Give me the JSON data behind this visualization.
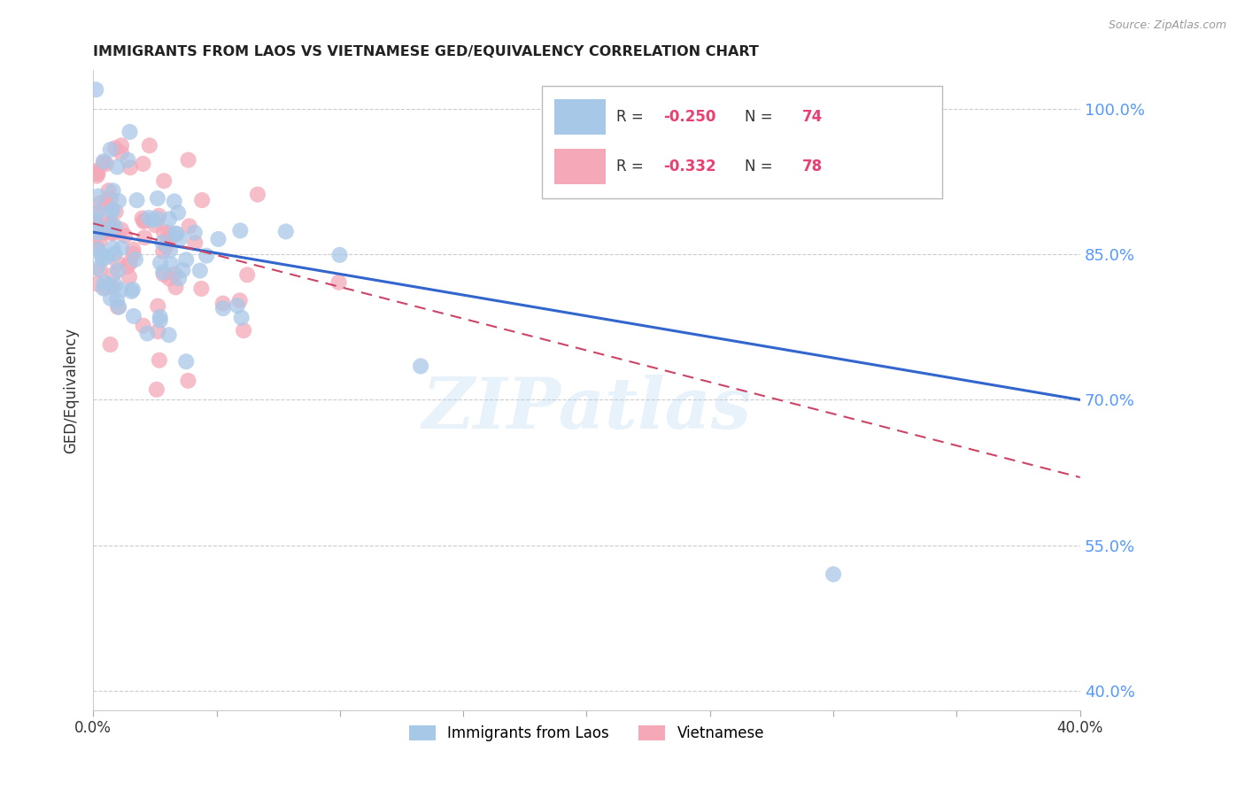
{
  "title": "IMMIGRANTS FROM LAOS VS VIETNAMESE GED/EQUIVALENCY CORRELATION CHART",
  "source": "Source: ZipAtlas.com",
  "ylabel": "GED/Equivalency",
  "series1_label": "Immigrants from Laos",
  "series2_label": "Vietnamese",
  "R1": -0.25,
  "N1": 74,
  "R2": -0.332,
  "N2": 78,
  "color1": "#a8c8e8",
  "color2": "#f4a8b8",
  "line_color1": "#3366cc",
  "line_color2": "#cc4466",
  "xlim": [
    0.0,
    0.4
  ],
  "ylim": [
    0.38,
    1.04
  ],
  "yticks": [
    0.4,
    0.55,
    0.7,
    0.85,
    1.0
  ],
  "ytick_labels": [
    "40.0%",
    "55.0%",
    "70.0%",
    "85.0%",
    "100.0%"
  ],
  "xticks": [
    0.0,
    0.05,
    0.1,
    0.15,
    0.2,
    0.25,
    0.3,
    0.35,
    0.4
  ],
  "xtick_labels": [
    "0.0%",
    "",
    "",
    "",
    "",
    "",
    "",
    "",
    "40.0%"
  ],
  "watermark": "ZIPatlas",
  "background_color": "#ffffff",
  "line1_x": [
    0.0,
    0.4
  ],
  "line1_y": [
    0.873,
    0.7
  ],
  "line2_x": [
    0.0,
    0.4
  ],
  "line2_y": [
    0.882,
    0.62
  ]
}
